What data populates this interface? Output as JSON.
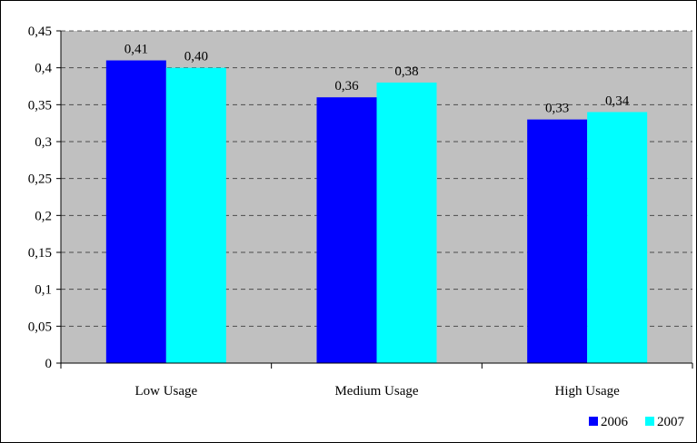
{
  "chart_data": {
    "type": "bar",
    "categories": [
      "Low Usage",
      "Medium Usage",
      "High Usage"
    ],
    "series": [
      {
        "name": "2006",
        "values": [
          0.41,
          0.36,
          0.33
        ],
        "data_labels": [
          "0,41",
          "0,36",
          "0,33"
        ],
        "color": "#0000ff"
      },
      {
        "name": "2007",
        "values": [
          0.4,
          0.38,
          0.34
        ],
        "data_labels": [
          "0,40",
          "0,38",
          "0,34"
        ],
        "color": "#00ffff"
      }
    ],
    "ylim": [
      0,
      0.45
    ],
    "yticks": [
      0,
      0.05,
      0.1,
      0.15,
      0.2,
      0.25,
      0.3,
      0.35,
      0.4,
      0.45
    ],
    "ytick_labels": [
      "0",
      "0,05",
      "0,1",
      "0,15",
      "0,2",
      "0,25",
      "0,3",
      "0,35",
      "0,4",
      "0,45"
    ],
    "grid": true,
    "plot_background": "#c0c0c0",
    "legend_position": "bottom-right",
    "title": "",
    "xlabel": "",
    "ylabel": ""
  }
}
